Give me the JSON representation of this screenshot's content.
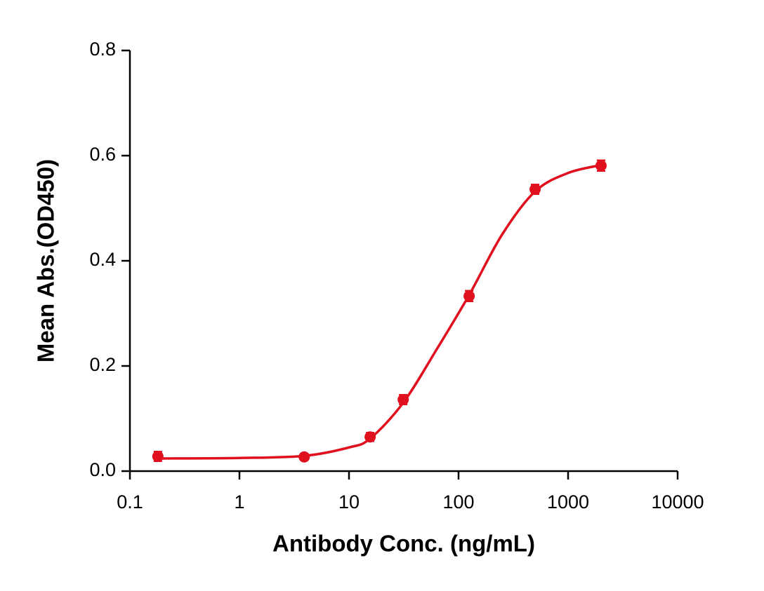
{
  "chart_data": {
    "type": "scatter",
    "x_label": "Antibody Conc. (ng/mL)",
    "y_label": "Mean Abs.(OD450)",
    "xlog": true,
    "xlim": [
      0.1,
      10000
    ],
    "xticks": [
      0.1,
      1,
      10,
      100,
      1000,
      10000
    ],
    "ylim": [
      0,
      0.8
    ],
    "yticks": [
      {
        "value": 0,
        "label": "0.0"
      },
      0.2,
      0.4,
      0.6,
      0.8
    ],
    "color": "#e0101e",
    "series": [
      {
        "color": "#e0101e",
        "x": [
          0.18,
          3.9,
          15.6,
          31.25,
          125,
          500,
          2000
        ],
        "values": [
          0.028,
          0.027,
          0.065,
          0.136,
          0.333,
          0.536,
          0.581
        ],
        "errors": [
          0.009,
          0.006,
          0.008,
          0.009,
          0.01,
          0.009,
          0.01
        ]
      }
    ],
    "curve": {
      "color": "#e0101e",
      "x": [
        0.18,
        1,
        3.9,
        10,
        15.6,
        31.25,
        62.5,
        125,
        250,
        500,
        1000,
        2000
      ],
      "values": [
        0.024,
        0.025,
        0.029,
        0.045,
        0.062,
        0.13,
        0.23,
        0.335,
        0.45,
        0.532,
        0.567,
        0.582
      ]
    }
  }
}
